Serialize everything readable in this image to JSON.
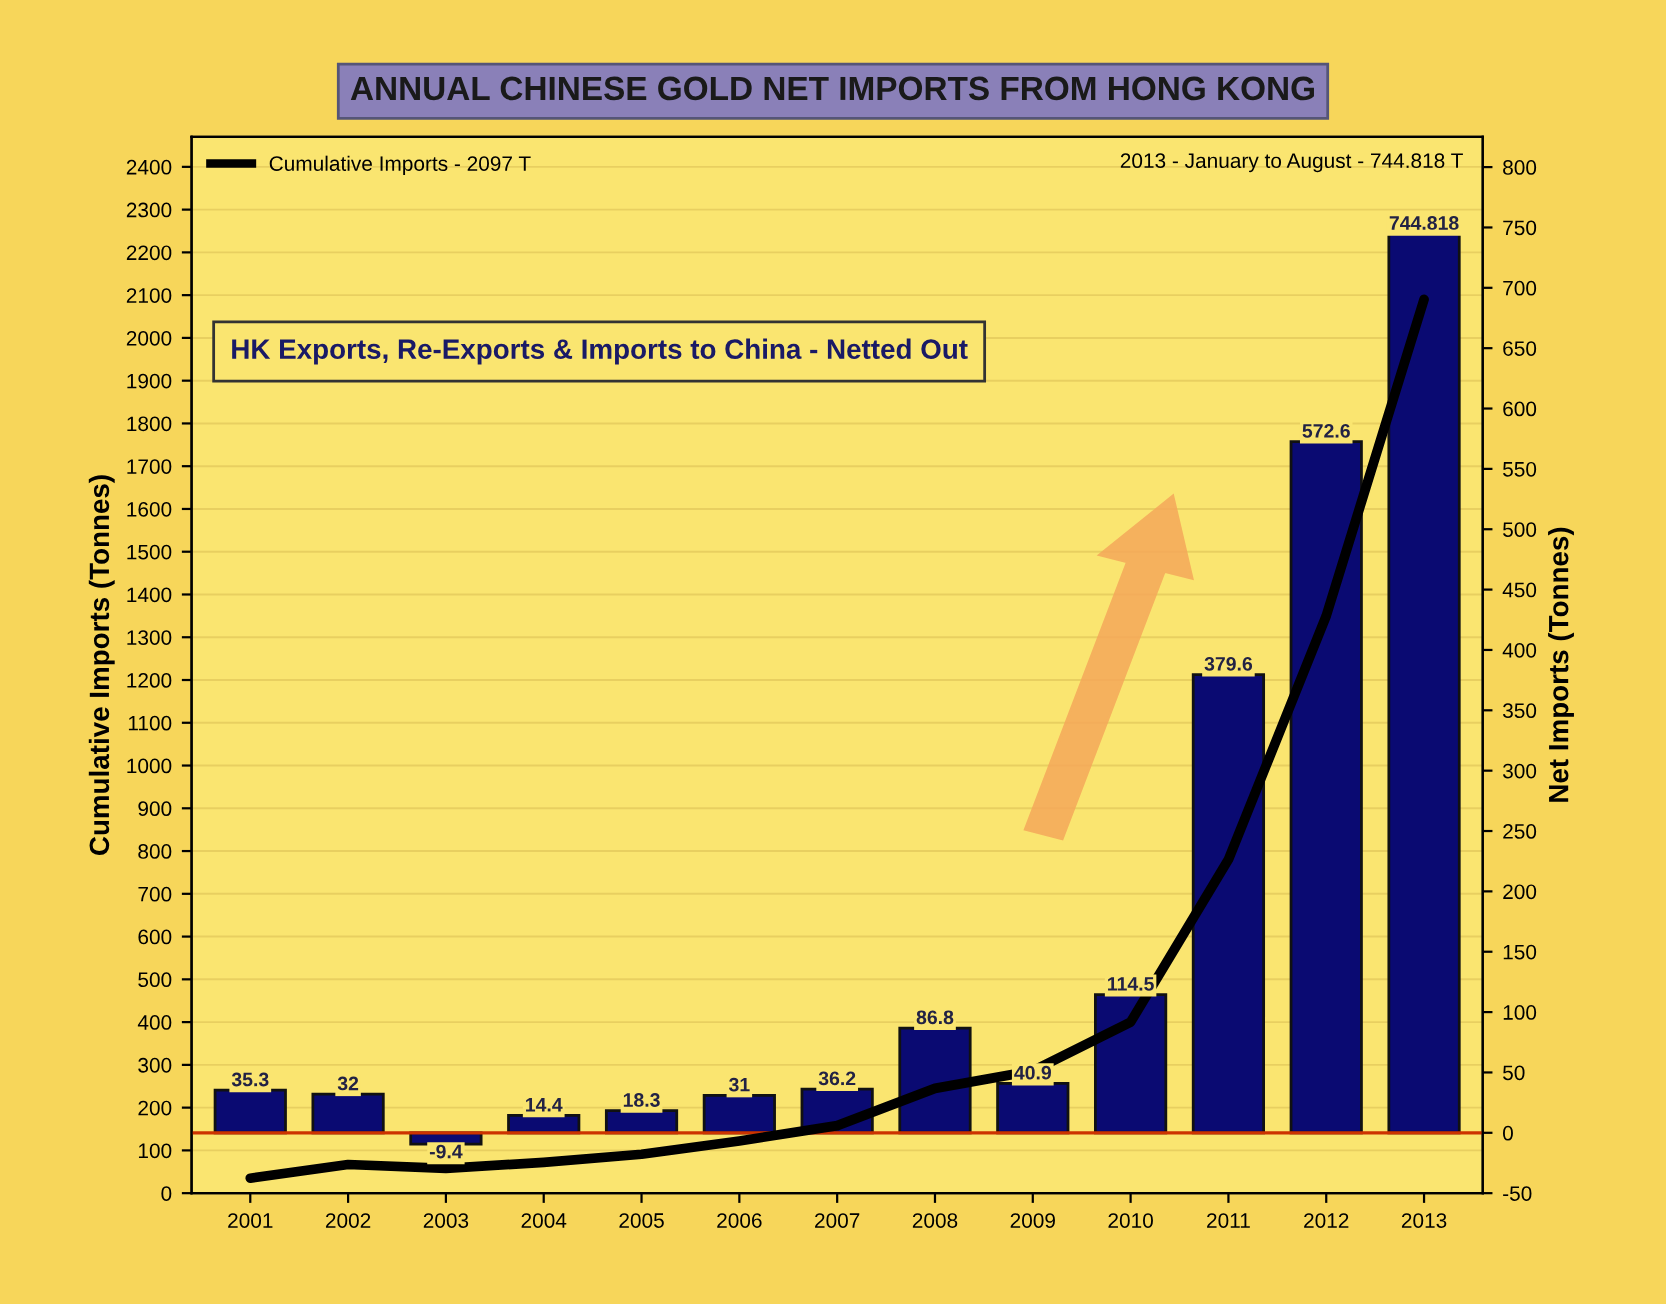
{
  "chart_data": {
    "type": "bar",
    "title": "ANNUAL CHINESE GOLD NET IMPORTS FROM HONG KONG",
    "ylabel": "Cumulative Imports (Tonnes)",
    "y2label": "Net Imports (Tonnes)",
    "categories": [
      "2001",
      "2002",
      "2003",
      "2004",
      "2005",
      "2006",
      "2007",
      "2008",
      "2009",
      "2010",
      "2011",
      "2012",
      "2013"
    ],
    "series": [
      {
        "axis": "y2",
        "color": "#0a0a72",
        "values": [
          35.3,
          32,
          -9.4,
          14.4,
          18.3,
          31,
          36.2,
          86.8,
          40.9,
          114.5,
          379.6,
          572.6,
          744.818
        ],
        "value_labels": [
          "35.3",
          "32",
          "-9.4",
          "14.4",
          "18.3",
          "31",
          "36.2",
          "86.8",
          "40.9",
          "114.5",
          "379.6",
          "572.6",
          "744.818"
        ]
      },
      {
        "type": "line",
        "name": "Cumulative Imports - 2097 T",
        "color": "#000000",
        "values": [
          35,
          67,
          58,
          72,
          91,
          122,
          158,
          245,
          286,
          400,
          780,
          1350,
          2090
        ]
      }
    ],
    "ylim": [
      0,
      2470
    ],
    "yticks": [
      0,
      100,
      200,
      300,
      400,
      500,
      600,
      700,
      800,
      900,
      1000,
      1100,
      1200,
      1300,
      1400,
      1500,
      1600,
      1700,
      1800,
      1900,
      2000,
      2100,
      2200,
      2300,
      2400
    ],
    "y2lim": [
      -50,
      825
    ],
    "y2ticks": [
      -50,
      0,
      50,
      100,
      150,
      200,
      250,
      300,
      350,
      400,
      450,
      500,
      550,
      600,
      650,
      700,
      750,
      800
    ],
    "ref_lines": [
      {
        "axis": "y2",
        "value": 0,
        "color": "#cc3300"
      }
    ],
    "annotations": [
      "HK Exports, Re-Exports & Imports to China - Netted Out",
      "2013 - January to August - 744.818 T"
    ],
    "grid": true,
    "legend": "top left"
  }
}
